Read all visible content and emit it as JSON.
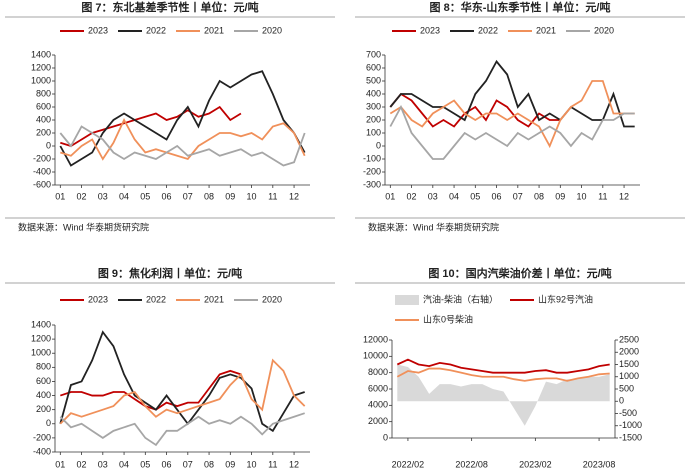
{
  "chart_data": [
    {
      "type": "line",
      "title": "图 7：东北基差季节性丨单位：元/吨",
      "source": "数据来源：Wind 华泰期货研究院",
      "categories": [
        "01",
        null,
        "02",
        null,
        "03",
        null,
        "04",
        null,
        "05",
        null,
        "06",
        null,
        "07",
        null,
        "08",
        null,
        "09",
        null,
        "10",
        null,
        "11",
        null,
        "12",
        null
      ],
      "ylim": [
        -600,
        1400
      ],
      "yticks": [
        -600,
        -400,
        -200,
        0,
        200,
        400,
        600,
        800,
        1000,
        1200,
        1400
      ],
      "series": [
        {
          "name": "2023",
          "color": "#c00000",
          "values": [
            50,
            0,
            100,
            200,
            250,
            300,
            350,
            400,
            450,
            500,
            400,
            450,
            550,
            450,
            500,
            600,
            400,
            500,
            null,
            null,
            null,
            null,
            null,
            null
          ]
        },
        {
          "name": "2022",
          "color": "#222222",
          "values": [
            0,
            -300,
            -200,
            -100,
            200,
            400,
            500,
            400,
            300,
            200,
            100,
            400,
            600,
            300,
            700,
            1000,
            900,
            1000,
            1100,
            1150,
            800,
            400,
            200,
            -100
          ]
        },
        {
          "name": "2021",
          "color": "#f0905a",
          "values": [
            -100,
            -150,
            0,
            100,
            -200,
            50,
            400,
            100,
            -100,
            -50,
            -100,
            -150,
            -200,
            0,
            100,
            200,
            200,
            150,
            200,
            100,
            300,
            350,
            200,
            -150
          ]
        },
        {
          "name": "2020",
          "color": "#a6a6a6",
          "values": [
            200,
            0,
            300,
            200,
            100,
            -100,
            -200,
            -100,
            -150,
            -200,
            -100,
            0,
            -150,
            -100,
            -50,
            -150,
            -100,
            -50,
            -150,
            -100,
            -200,
            -300,
            -250,
            200
          ]
        }
      ]
    },
    {
      "type": "line",
      "title": "图 8：华东-山东季节性丨单位：元/吨",
      "source": "数据来源：Wind 华泰期货研究院",
      "categories": [
        "01",
        null,
        "02",
        null,
        "03",
        null,
        "04",
        null,
        "05",
        null,
        "06",
        null,
        "07",
        null,
        "08",
        null,
        "09",
        null,
        "10",
        null,
        "11",
        null,
        "12",
        null
      ],
      "ylim": [
        -300,
        700
      ],
      "yticks": [
        -300,
        -200,
        -100,
        0,
        100,
        200,
        300,
        400,
        500,
        600,
        700
      ],
      "series": [
        {
          "name": "2023",
          "color": "#c00000",
          "values": [
            300,
            400,
            350,
            250,
            150,
            200,
            150,
            250,
            300,
            200,
            350,
            300,
            200,
            150,
            250,
            200,
            200,
            null,
            null,
            null,
            null,
            null,
            null,
            null
          ]
        },
        {
          "name": "2022",
          "color": "#222222",
          "values": [
            300,
            400,
            400,
            350,
            300,
            300,
            250,
            200,
            400,
            500,
            650,
            550,
            300,
            400,
            200,
            250,
            200,
            300,
            250,
            200,
            200,
            400,
            150,
            150
          ]
        },
        {
          "name": "2021",
          "color": "#f0905a",
          "values": [
            250,
            300,
            200,
            150,
            250,
            300,
            350,
            250,
            200,
            250,
            250,
            200,
            250,
            200,
            150,
            0,
            200,
            300,
            350,
            500,
            500,
            250,
            250,
            250
          ]
        },
        {
          "name": "2020",
          "color": "#a6a6a6",
          "values": [
            150,
            300,
            100,
            0,
            -100,
            -100,
            0,
            100,
            50,
            100,
            50,
            0,
            100,
            50,
            100,
            150,
            100,
            0,
            100,
            50,
            200,
            200,
            250,
            250
          ]
        }
      ]
    },
    {
      "type": "line",
      "title": "图 9：焦化利润丨单位：元/吨",
      "categories": [
        "01",
        null,
        "02",
        null,
        "03",
        null,
        "04",
        null,
        "05",
        null,
        "06",
        null,
        "07",
        null,
        "08",
        null,
        "09",
        null,
        "10",
        null,
        "11",
        null,
        "12",
        null
      ],
      "ylim": [
        -400,
        1400
      ],
      "yticks": [
        -400,
        -200,
        0,
        200,
        400,
        600,
        800,
        1000,
        1200,
        1400
      ],
      "series": [
        {
          "name": "2023",
          "color": "#c00000",
          "values": [
            400,
            450,
            450,
            400,
            400,
            450,
            450,
            350,
            250,
            200,
            300,
            250,
            300,
            300,
            500,
            700,
            750,
            700,
            null,
            null,
            null,
            null,
            null,
            null
          ]
        },
        {
          "name": "2022",
          "color": "#222222",
          "values": [
            0,
            550,
            600,
            900,
            1300,
            1100,
            700,
            400,
            300,
            200,
            400,
            200,
            0,
            200,
            400,
            650,
            700,
            650,
            500,
            0,
            -100,
            150,
            400,
            450
          ]
        },
        {
          "name": "2021",
          "color": "#f0905a",
          "values": [
            0,
            150,
            100,
            150,
            200,
            250,
            400,
            450,
            250,
            100,
            200,
            150,
            200,
            250,
            300,
            350,
            550,
            700,
            350,
            200,
            900,
            750,
            400,
            250
          ]
        },
        {
          "name": "2020",
          "color": "#a6a6a6",
          "values": [
            100,
            -50,
            0,
            -100,
            -200,
            -100,
            -50,
            0,
            -200,
            -300,
            -100,
            -100,
            0,
            100,
            0,
            50,
            0,
            100,
            0,
            -150,
            0,
            50,
            100,
            150
          ]
        }
      ]
    },
    {
      "type": "line",
      "title": "图 10：国内汽柴油价差丨单位：元/吨",
      "categories": [
        null,
        "2022/02",
        null,
        null,
        null,
        null,
        null,
        "2022/08",
        null,
        null,
        null,
        null,
        null,
        "2023/02",
        null,
        null,
        null,
        null,
        null,
        "2023/08",
        null
      ],
      "ylim": [
        0,
        12000
      ],
      "yticks": [
        0,
        2000,
        4000,
        6000,
        8000,
        10000,
        12000
      ],
      "y2lim": [
        -1500,
        2500
      ],
      "y2ticks": [
        -1500,
        -1000,
        -500,
        0,
        500,
        1000,
        1500,
        2000,
        2500
      ],
      "series": [
        {
          "name": "汽油-柴油（右轴）",
          "color": "#d9d9d9",
          "axis": "y2",
          "kind": "area",
          "values": [
            1500,
            1400,
            1000,
            300,
            700,
            700,
            600,
            700,
            700,
            500,
            400,
            -300,
            -1000,
            -200,
            800,
            700,
            900,
            900,
            1000,
            1000,
            1100
          ]
        },
        {
          "name": "山东92号汽油",
          "color": "#c00000",
          "values": [
            9000,
            9600,
            9000,
            8800,
            9200,
            9000,
            8600,
            8400,
            8200,
            8000,
            8000,
            8000,
            8000,
            8200,
            8300,
            8000,
            8000,
            8200,
            8400,
            8800,
            9000
          ]
        },
        {
          "name": "山东0号柴油",
          "color": "#f0905a",
          "values": [
            7500,
            8200,
            8000,
            8500,
            8500,
            8300,
            8000,
            7700,
            7500,
            7500,
            7500,
            7200,
            7000,
            7200,
            7300,
            7300,
            7000,
            7300,
            7500,
            7800,
            7900
          ]
        }
      ]
    }
  ]
}
